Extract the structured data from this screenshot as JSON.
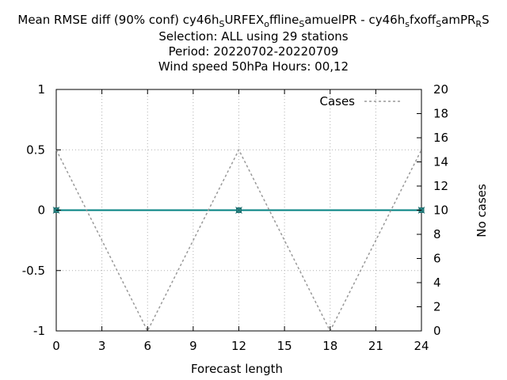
{
  "chart_data": {
    "type": "line",
    "title_lines": [
      [
        "Mean RMSE diff (90% conf) cy46h",
        "S",
        "URFEX",
        "o",
        "ffline",
        "S",
        "amuelPR - cy46h",
        "s",
        "fxoff",
        "S",
        "amPR",
        "R",
        "S"
      ],
      "Selection: ALL using    29 stations",
      "Period: 20220702-20220709",
      "Wind speed 50hPa   Hours:  00,12"
    ],
    "xlabel": "Forecast length",
    "ylabel_right": "No cases",
    "xlim": [
      0,
      24
    ],
    "ylim_left": [
      -1,
      1
    ],
    "ylim_right": [
      0,
      20
    ],
    "x_ticks": [
      "0",
      "3",
      "6",
      "9",
      "12",
      "15",
      "18",
      "21",
      "24"
    ],
    "x_tick_values": [
      0,
      3,
      6,
      9,
      12,
      15,
      18,
      21,
      24
    ],
    "y_left_ticks": [
      "1",
      "0.5",
      "0",
      "-0.5",
      "-1"
    ],
    "y_left_tick_values": [
      1,
      0.5,
      0,
      -0.5,
      -1
    ],
    "y_right_ticks": [
      "20",
      "18",
      "16",
      "14",
      "12",
      "10",
      "8",
      "6",
      "4",
      "2",
      "0"
    ],
    "y_right_tick_values": [
      20,
      18,
      16,
      14,
      12,
      10,
      8,
      6,
      4,
      2,
      0
    ],
    "grid": true,
    "legend_placement": "top-right",
    "series": [
      {
        "name": "",
        "axis": "left",
        "style": "solid-with-markers",
        "color": "#008080",
        "marker_color": "#2e8b8b",
        "x": [
          0,
          12,
          24
        ],
        "y": [
          0,
          0,
          0
        ]
      },
      {
        "name": "Cases",
        "axis": "right",
        "style": "dashed",
        "color": "#999999",
        "x": [
          0,
          6,
          12,
          18,
          24
        ],
        "y": [
          15,
          0,
          15,
          0,
          15
        ]
      }
    ]
  }
}
